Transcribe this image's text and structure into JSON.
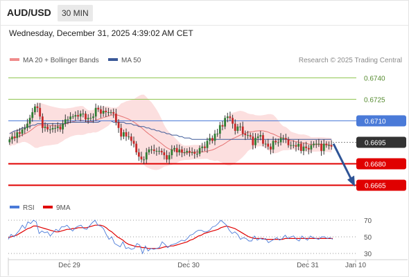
{
  "header": {
    "symbol": "AUD/USD",
    "timeframe": "30 MIN",
    "datetime": "Wednesday, December 31, 2025 4:39:02 AM CET",
    "source": "Research © 2025 Trading Central"
  },
  "chart_data": [
    {
      "type": "candlestick",
      "title": "AUD/USD",
      "legend": [
        "MA 20 + Bollinger Bands",
        "MA 50"
      ],
      "colors": {
        "bullish": "#2e7d32",
        "bearish": "#c62828",
        "ma20": "#e57373",
        "bands": "#fbd9d9",
        "ma50": "#3b5998"
      },
      "x_ticks": [
        "Dec 29",
        "Dec 30",
        "Dec 31",
        "Jan 10"
      ],
      "ylim": [
        0.6658,
        0.6746
      ],
      "levels": [
        {
          "value": 0.674,
          "label": "0.6740",
          "kind": "target",
          "color": "#8bc34a"
        },
        {
          "value": 0.6725,
          "label": "0.6725",
          "kind": "target",
          "color": "#8bc34a"
        },
        {
          "value": 0.671,
          "label": "0.6710",
          "kind": "pivot",
          "color": "#4a7ad8"
        },
        {
          "value": 0.6695,
          "label": "0.6695",
          "kind": "last",
          "color": "#333333"
        },
        {
          "value": 0.668,
          "label": "0.6680",
          "kind": "support",
          "color": "#e00000"
        },
        {
          "value": 0.6665,
          "label": "0.6665",
          "kind": "support",
          "color": "#e00000"
        }
      ],
      "close": [
        0.6697,
        0.6699,
        0.6698,
        0.6702,
        0.6701,
        0.6704,
        0.6705,
        0.6708,
        0.6712,
        0.6716,
        0.672,
        0.6719,
        0.6713,
        0.6705,
        0.6706,
        0.6704,
        0.6704,
        0.6705,
        0.6705,
        0.6706,
        0.6704,
        0.6708,
        0.6711,
        0.6711,
        0.6713,
        0.6713,
        0.6714,
        0.6713,
        0.6715,
        0.6715,
        0.6711,
        0.6712,
        0.6712,
        0.6713,
        0.6719,
        0.6718,
        0.6715,
        0.6717,
        0.6716,
        0.6716,
        0.6716,
        0.6715,
        0.6709,
        0.6705,
        0.6699,
        0.6702,
        0.6699,
        0.6699,
        0.6696,
        0.6694,
        0.6688,
        0.6685,
        0.6683,
        0.6683,
        0.6688,
        0.669,
        0.669,
        0.6689,
        0.6689,
        0.6689,
        0.6688,
        0.6686,
        0.6683,
        0.6686,
        0.669,
        0.6691,
        0.6688,
        0.669,
        0.6688,
        0.6688,
        0.6689,
        0.6688,
        0.6688,
        0.6687,
        0.6687,
        0.6691,
        0.6692,
        0.6691,
        0.6696,
        0.6698,
        0.6696,
        0.6701,
        0.6701,
        0.6707,
        0.6706,
        0.6712,
        0.6713,
        0.6712,
        0.6708,
        0.6703,
        0.6706,
        0.6706,
        0.6701,
        0.67,
        0.67,
        0.6699,
        0.6693,
        0.6698,
        0.6699,
        0.67,
        0.6694,
        0.6694,
        0.6692,
        0.669,
        0.6696,
        0.6695,
        0.6695,
        0.6698,
        0.6698,
        0.6697,
        0.6693,
        0.6693,
        0.6693,
        0.6692,
        0.6694,
        0.6689,
        0.6692,
        0.6691,
        0.669,
        0.6693,
        0.6694,
        0.6694,
        0.6694,
        0.6689,
        0.6694,
        0.6693,
        0.6693,
        0.6692
      ],
      "ma50": [
        0.6701,
        0.6702,
        0.6703,
        0.6703,
        0.6704,
        0.6705,
        0.6705,
        0.6706,
        0.6706,
        0.6707,
        0.6707,
        0.6708,
        0.6708,
        0.6708,
        0.6708,
        0.6708,
        0.6708,
        0.6708,
        0.6708,
        0.6708,
        0.6708,
        0.6708,
        0.6708,
        0.6709,
        0.6709,
        0.6709,
        0.6709,
        0.6709,
        0.6709,
        0.6709,
        0.6709,
        0.6709,
        0.6709,
        0.6709,
        0.6709,
        0.6709,
        0.671,
        0.671,
        0.671,
        0.671,
        0.671,
        0.6709,
        0.6709,
        0.6709,
        0.6709,
        0.6709,
        0.6708,
        0.6708,
        0.6708,
        0.6707,
        0.6707,
        0.6706,
        0.6706,
        0.6706,
        0.6705,
        0.6705,
        0.6704,
        0.6704,
        0.6703,
        0.6703,
        0.6702,
        0.6702,
        0.6701,
        0.6701,
        0.67,
        0.67,
        0.67,
        0.6699,
        0.6699,
        0.6698,
        0.6698,
        0.6698,
        0.6697,
        0.6697,
        0.6697,
        0.6697,
        0.6697,
        0.6697,
        0.6697,
        0.6697,
        0.6697,
        0.6697,
        0.6697,
        0.6697,
        0.6697,
        0.6697,
        0.6697,
        0.6697,
        0.6697,
        0.6697,
        0.6697,
        0.6697,
        0.6697,
        0.6697,
        0.6697,
        0.6697,
        0.6697,
        0.6697,
        0.6697,
        0.6697,
        0.6697,
        0.6697,
        0.6697,
        0.6697,
        0.6697,
        0.6697,
        0.6697,
        0.6697,
        0.6697,
        0.6697,
        0.6697,
        0.6697,
        0.6697,
        0.6697,
        0.6697,
        0.6697,
        0.6697,
        0.6697,
        0.6697,
        0.6697,
        0.6697,
        0.6697,
        0.6697,
        0.6697,
        0.6697,
        0.6697,
        0.6697,
        0.6697
      ],
      "forecast": {
        "from": 0.6694,
        "to": 0.6665
      }
    },
    {
      "type": "line",
      "title": "RSI",
      "legend": [
        "RSI",
        "9MA"
      ],
      "colors": {
        "rsi": "#4a7ad8",
        "ma9": "#e00000"
      },
      "ylim": [
        25,
        75
      ],
      "y_ticks": [
        70,
        50,
        30
      ],
      "rsi": [
        47,
        53,
        50,
        54,
        58,
        64,
        60,
        68,
        66,
        70,
        68,
        54,
        57,
        55,
        56,
        51,
        55,
        59,
        57,
        62,
        62,
        64,
        60,
        57,
        61,
        63,
        64,
        60,
        59,
        63,
        67,
        70,
        64,
        63,
        60,
        53,
        47,
        50,
        42,
        40,
        38,
        44,
        36,
        37,
        35,
        36,
        42,
        40,
        30,
        39,
        33,
        36,
        35,
        36,
        37,
        44,
        41,
        37,
        40,
        41,
        42,
        44,
        46,
        45,
        48,
        52,
        53,
        56,
        58,
        58,
        56,
        56,
        58,
        62,
        63,
        66,
        70,
        67,
        64,
        58,
        54,
        56,
        53,
        47,
        49,
        48,
        45,
        45,
        51,
        46,
        48,
        47,
        48,
        43,
        45,
        47,
        49,
        46,
        48,
        52,
        48,
        50,
        51,
        47,
        45,
        51,
        48,
        46,
        51,
        49,
        48,
        47,
        50,
        50,
        48,
        49,
        47
      ],
      "ma9": [
        49,
        50,
        51,
        52,
        54,
        56,
        58,
        60,
        61,
        63,
        63,
        62,
        61,
        60,
        59,
        58,
        57,
        56,
        56,
        57,
        58,
        59,
        59,
        60,
        60,
        61,
        61,
        61,
        61,
        62,
        63,
        64,
        64,
        64,
        63,
        61,
        58,
        56,
        53,
        50,
        48,
        46,
        43,
        41,
        40,
        39,
        38,
        38,
        37,
        37,
        36,
        36,
        36,
        36,
        36,
        37,
        38,
        38,
        39,
        39,
        40,
        41,
        42,
        43,
        44,
        46,
        47,
        49,
        51,
        52,
        54,
        55,
        56,
        57,
        58,
        59,
        61,
        62,
        63,
        62,
        61,
        60,
        58,
        56,
        54,
        52,
        50,
        49,
        48,
        48,
        48,
        48,
        47,
        47,
        47,
        47,
        47,
        47,
        47,
        48,
        48,
        48,
        48,
        48,
        48,
        48,
        48,
        48,
        48,
        48,
        48,
        48,
        48,
        48,
        48,
        48,
        48
      ]
    }
  ]
}
